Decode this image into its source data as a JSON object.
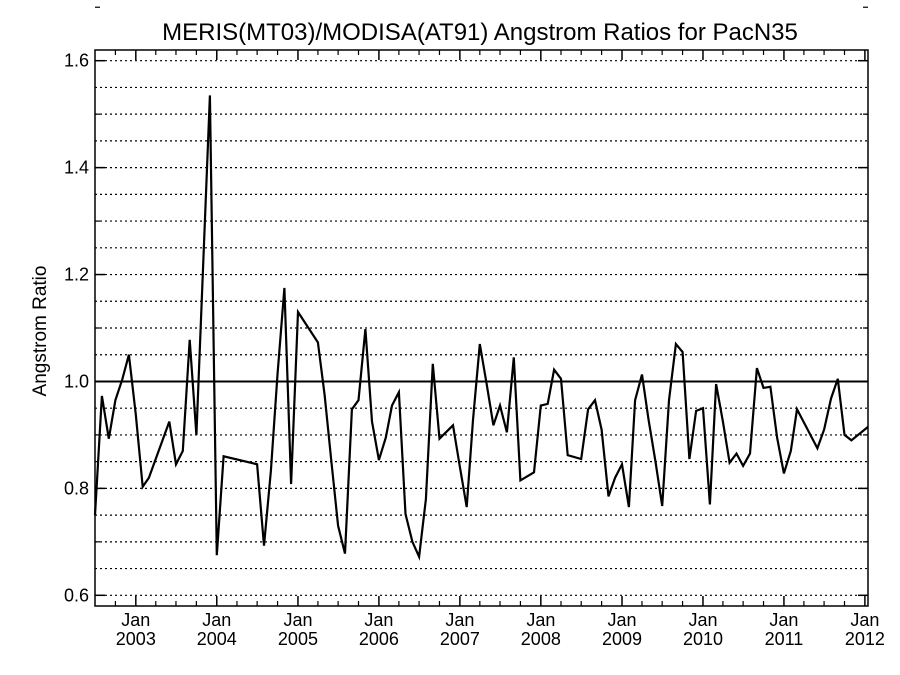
{
  "chart_data": {
    "type": "line",
    "title": "MERIS(MT03)/MODISA(AT91)  Angstrom Ratios for PacN35",
    "ylabel": "Angstrom Ratio",
    "xlabel": "",
    "ylim": [
      0.58,
      1.62
    ],
    "xlim": [
      "2002-07-01",
      "2012-01-15"
    ],
    "y_ticks": [
      "0.6",
      "0.8",
      "1.0",
      "1.2",
      "1.4",
      "1.6"
    ],
    "x_ticks": [
      {
        "month": "Jan",
        "year": "2003",
        "date": "2003-01-01"
      },
      {
        "month": "Jan",
        "year": "2004",
        "date": "2004-01-01"
      },
      {
        "month": "Jan",
        "year": "2005",
        "date": "2005-01-01"
      },
      {
        "month": "Jan",
        "year": "2006",
        "date": "2006-01-01"
      },
      {
        "month": "Jan",
        "year": "2007",
        "date": "2007-01-01"
      },
      {
        "month": "Jan",
        "year": "2008",
        "date": "2008-01-01"
      },
      {
        "month": "Jan",
        "year": "2009",
        "date": "2009-01-01"
      },
      {
        "month": "Jan",
        "year": "2010",
        "date": "2010-01-01"
      },
      {
        "month": "Jan",
        "year": "2011",
        "date": "2011-01-01"
      },
      {
        "month": "Jan",
        "year": "2012",
        "date": "2012-01-01"
      }
    ],
    "grid": true,
    "reference_line": 1.0,
    "series": [
      {
        "color": "#000000",
        "points": [
          [
            "2002-07-01",
            0.75
          ],
          [
            "2002-08-01",
            0.973
          ],
          [
            "2002-09-01",
            0.893
          ],
          [
            "2002-10-01",
            0.965
          ],
          [
            "2002-11-01",
            1.004
          ],
          [
            "2002-12-01",
            1.05
          ],
          [
            "2003-01-01",
            0.938
          ],
          [
            "2003-02-01",
            0.803
          ],
          [
            "2003-03-01",
            0.82
          ],
          [
            "2003-06-01",
            0.925
          ],
          [
            "2003-07-01",
            0.845
          ],
          [
            "2003-08-01",
            0.87
          ],
          [
            "2003-09-01",
            1.078
          ],
          [
            "2003-10-01",
            0.9
          ],
          [
            "2003-12-01",
            1.535
          ],
          [
            "2004-01-01",
            0.675
          ],
          [
            "2004-02-01",
            0.86
          ],
          [
            "2004-07-01",
            0.845
          ],
          [
            "2004-08-01",
            0.693
          ],
          [
            "2004-09-01",
            0.833
          ],
          [
            "2004-10-01",
            1.013
          ],
          [
            "2004-11-01",
            1.175
          ],
          [
            "2004-12-01",
            0.808
          ],
          [
            "2005-01-01",
            1.13
          ],
          [
            "2005-04-01",
            1.073
          ],
          [
            "2005-05-01",
            0.975
          ],
          [
            "2005-06-01",
            0.85
          ],
          [
            "2005-07-01",
            0.73
          ],
          [
            "2005-08-01",
            0.678
          ],
          [
            "2005-09-01",
            0.948
          ],
          [
            "2005-10-01",
            0.965
          ],
          [
            "2005-11-01",
            1.098
          ],
          [
            "2005-12-01",
            0.925
          ],
          [
            "2006-01-01",
            0.853
          ],
          [
            "2006-02-01",
            0.895
          ],
          [
            "2006-03-01",
            0.955
          ],
          [
            "2006-04-01",
            0.98
          ],
          [
            "2006-05-01",
            0.752
          ],
          [
            "2006-06-01",
            0.7
          ],
          [
            "2006-07-01",
            0.672
          ],
          [
            "2006-08-01",
            0.78
          ],
          [
            "2006-09-01",
            1.033
          ],
          [
            "2006-10-01",
            0.893
          ],
          [
            "2006-12-01",
            0.918
          ],
          [
            "2007-01-01",
            0.84
          ],
          [
            "2007-02-01",
            0.765
          ],
          [
            "2007-03-01",
            0.928
          ],
          [
            "2007-04-01",
            1.07
          ],
          [
            "2007-05-01",
            0.997
          ],
          [
            "2007-06-01",
            0.918
          ],
          [
            "2007-07-01",
            0.955
          ],
          [
            "2007-08-01",
            0.905
          ],
          [
            "2007-09-01",
            1.045
          ],
          [
            "2007-10-01",
            0.815
          ],
          [
            "2007-12-01",
            0.83
          ],
          [
            "2008-01-01",
            0.955
          ],
          [
            "2008-02-01",
            0.958
          ],
          [
            "2008-03-01",
            1.022
          ],
          [
            "2008-04-01",
            1.005
          ],
          [
            "2008-05-01",
            0.862
          ],
          [
            "2008-07-01",
            0.855
          ],
          [
            "2008-08-01",
            0.948
          ],
          [
            "2008-09-01",
            0.965
          ],
          [
            "2008-10-01",
            0.91
          ],
          [
            "2008-11-01",
            0.785
          ],
          [
            "2008-12-01",
            0.82
          ],
          [
            "2009-01-01",
            0.845
          ],
          [
            "2009-02-01",
            0.765
          ],
          [
            "2009-03-01",
            0.965
          ],
          [
            "2009-04-01",
            1.013
          ],
          [
            "2009-05-01",
            0.928
          ],
          [
            "2009-06-01",
            0.85
          ],
          [
            "2009-07-01",
            0.767
          ],
          [
            "2009-08-01",
            0.965
          ],
          [
            "2009-09-01",
            1.07
          ],
          [
            "2009-10-01",
            1.055
          ],
          [
            "2009-11-01",
            0.855
          ],
          [
            "2009-12-01",
            0.945
          ],
          [
            "2010-01-01",
            0.95
          ],
          [
            "2010-02-01",
            0.77
          ],
          [
            "2010-03-01",
            0.995
          ],
          [
            "2010-04-01",
            0.925
          ],
          [
            "2010-05-01",
            0.848
          ],
          [
            "2010-06-01",
            0.865
          ],
          [
            "2010-07-01",
            0.842
          ],
          [
            "2010-08-01",
            0.865
          ],
          [
            "2010-09-01",
            1.025
          ],
          [
            "2010-10-01",
            0.988
          ],
          [
            "2010-11-01",
            0.99
          ],
          [
            "2010-12-01",
            0.895
          ],
          [
            "2011-01-01",
            0.828
          ],
          [
            "2011-02-01",
            0.87
          ],
          [
            "2011-03-01",
            0.948
          ],
          [
            "2011-06-01",
            0.875
          ],
          [
            "2011-07-01",
            0.91
          ],
          [
            "2011-08-01",
            0.968
          ],
          [
            "2011-09-01",
            1.005
          ],
          [
            "2011-10-01",
            0.9
          ],
          [
            "2011-11-01",
            0.89
          ],
          [
            "2012-01-15",
            0.915
          ]
        ]
      }
    ]
  }
}
